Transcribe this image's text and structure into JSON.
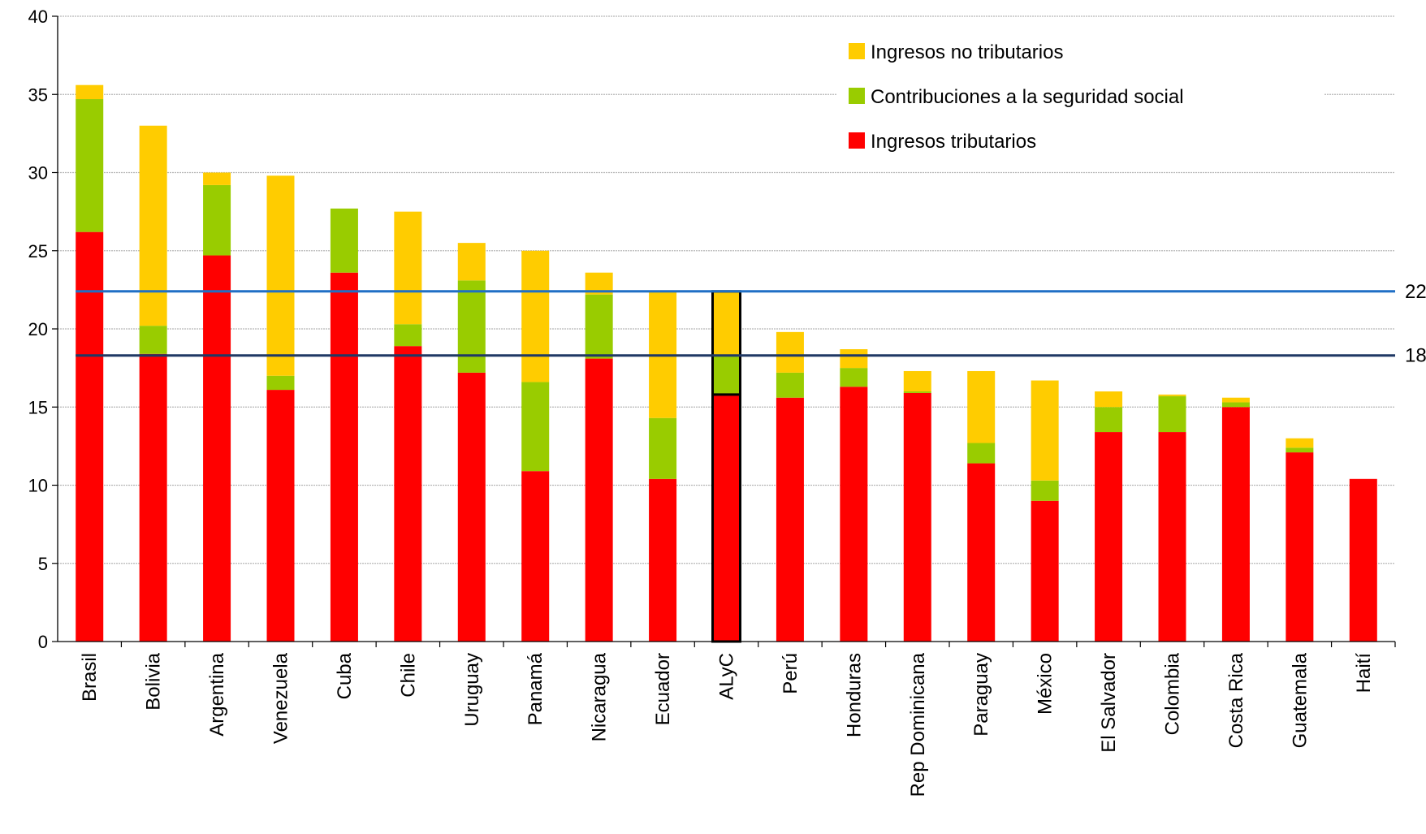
{
  "chart_data": {
    "type": "bar",
    "stacked": true,
    "ylim": [
      0,
      40
    ],
    "yticks": [
      0,
      5,
      10,
      15,
      20,
      25,
      30,
      35,
      40
    ],
    "grid": true,
    "legend_position": "top-right",
    "categories": [
      "Brasil",
      "Bolivia",
      "Argentina",
      "Venezuela",
      "Cuba",
      "Chile",
      "Uruguay",
      "Panamá",
      "Nicaragua",
      "Ecuador",
      "ALyC",
      "Perú",
      "Honduras",
      "Rep Dominicana",
      "Paraguay",
      "México",
      "El Salvador",
      "Colombia",
      "Costa Rica",
      "Guatemala",
      "Haití"
    ],
    "highlighted_category": "ALyC",
    "series": [
      {
        "name": "Ingresos tributarios",
        "color": "#ff0000",
        "values": [
          26.2,
          18.4,
          24.7,
          16.1,
          23.6,
          18.9,
          17.2,
          10.9,
          18.1,
          10.4,
          15.8,
          15.6,
          16.3,
          15.9,
          11.4,
          9.0,
          13.4,
          13.4,
          15.0,
          12.1,
          10.4
        ]
      },
      {
        "name": "Contribuciones a la seguridad social",
        "color": "#99cc00",
        "values": [
          8.5,
          1.8,
          4.5,
          0.9,
          4.1,
          1.4,
          5.9,
          5.7,
          4.1,
          3.9,
          2.5,
          1.6,
          1.2,
          0.1,
          1.3,
          1.3,
          1.6,
          2.3,
          0.3,
          0.3,
          0
        ]
      },
      {
        "name": "Ingresos no tributarios",
        "color": "#ffcc00",
        "values": [
          0.9,
          12.8,
          0.8,
          12.8,
          0,
          7.2,
          2.4,
          8.4,
          1.4,
          8.1,
          4.1,
          2.6,
          1.2,
          1.3,
          4.6,
          6.4,
          1.0,
          0.1,
          0.3,
          0.6,
          0
        ]
      }
    ],
    "reference_lines": [
      {
        "value": 22.4,
        "label": "22,4",
        "color": "#1f6fc5"
      },
      {
        "value": 18.3,
        "label": "18,3",
        "color": "#1f3864"
      }
    ]
  }
}
